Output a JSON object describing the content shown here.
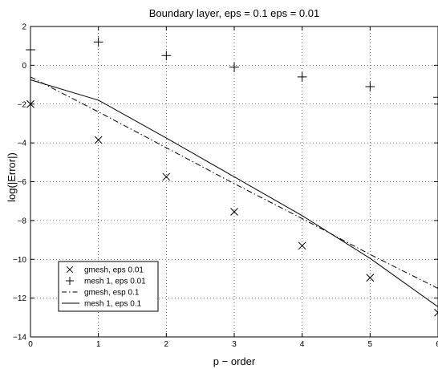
{
  "chart_data": {
    "type": "scatter",
    "title": "Boundary layer, eps = 0.1 eps = 0.01",
    "xlabel": "p − order",
    "ylabel": "log(|Error|)",
    "xlim": [
      0,
      6
    ],
    "ylim": [
      -14,
      2
    ],
    "xticks": [
      "0",
      "1",
      "2",
      "3",
      "4",
      "5",
      "6"
    ],
    "yticks": [
      "2",
      "0",
      "−2",
      "−4",
      "−6",
      "−8",
      "−10",
      "−12",
      "−14"
    ],
    "grid": true,
    "legend_position": "bottom-left",
    "series": [
      {
        "name": "gmesh, eps 0.01",
        "style": "marker-x",
        "color": "#000000",
        "x": [
          0,
          1,
          2,
          3,
          4,
          5,
          6
        ],
        "y": [
          -2.0,
          -3.85,
          -5.75,
          -7.55,
          -9.3,
          -10.95,
          -12.75
        ]
      },
      {
        "name": "mesh 1, eps 0.01",
        "style": "marker-plus",
        "color": "#000000",
        "x": [
          0,
          1,
          2,
          3,
          4,
          5,
          6
        ],
        "y": [
          0.8,
          1.2,
          0.5,
          -0.1,
          -0.6,
          -1.1,
          -1.65
        ]
      },
      {
        "name": "gmesh, esp 0.1",
        "style": "dashdot",
        "color": "#000000",
        "x": [
          0,
          1,
          2,
          3,
          4,
          5,
          6
        ],
        "y": [
          -0.6,
          -2.4,
          -4.25,
          -6.1,
          -7.9,
          -9.75,
          -11.5
        ]
      },
      {
        "name": "mesh 1, eps 0.1",
        "style": "solid",
        "color": "#000000",
        "x": [
          0,
          1,
          2,
          3,
          4,
          5,
          6
        ],
        "y": [
          -0.75,
          -1.8,
          -3.75,
          -5.75,
          -7.75,
          -9.95,
          -12.45
        ]
      }
    ]
  }
}
